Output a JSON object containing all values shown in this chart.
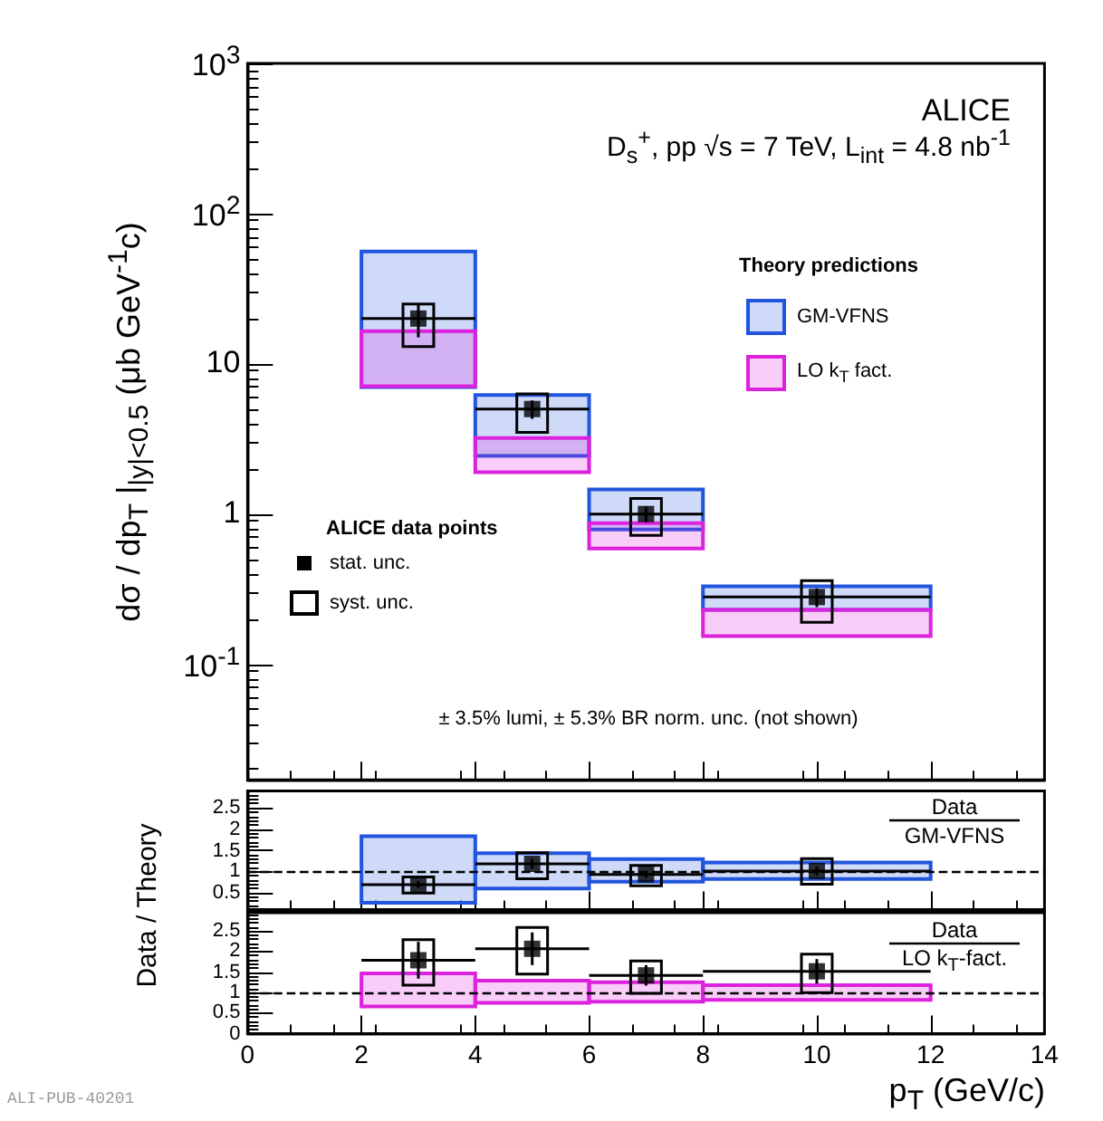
{
  "chart_data": [
    {
      "type": "scatter",
      "ylabel": "dσ / dp$_{T}$ |$_{|y|<0.5}$  (μb GeV$^{-1}$c)",
      "legend_title": "Theory predictions",
      "legend": "center",
      "log": "y",
      "marker": "square",
      "tick_labels": "y",
      "annotations": [
        "ALICE",
        "D$_{s}$$^{+}$, pp √s = 7 TeV, L$_{int}$ = 4.8 nb$^{-1}$",
        "± 3.5% lumi, ± 5.3% BR norm. unc. (not shown)",
        "ALICE data points"
      ],
      "xlim": [
        0,
        14
      ],
      "xticks": [
        0,
        2,
        4,
        6,
        8,
        10,
        12,
        14
      ],
      "ylim": [
        0.017,
        1000
      ],
      "yticks": [
        {
          "value": 0.1,
          "label": "10$^{-1}$"
        },
        1,
        10,
        {
          "value": 100,
          "label": "10$^{2}$"
        },
        {
          "value": 1000,
          "label": "10$^{3}$"
        }
      ],
      "series": [
        {
          "name": "GM-VFNS",
          "type": "histogram",
          "color": "#2255dd",
          "bins": [
            2,
            4,
            6,
            8,
            12
          ],
          "base": [
            7.0,
            2.44,
            0.79,
            0.23
          ],
          "values": [
            49,
            3.76,
            0.67,
            0.1
          ]
        },
        {
          "name": "LO k$_{T}$ fact.",
          "type": "histogram",
          "color": "#dd22dd",
          "bins": [
            2,
            4,
            6,
            8,
            12
          ],
          "base": [
            7.1,
            1.9,
            0.59,
            0.154
          ],
          "values": [
            9.4,
            1.3,
            0.28,
            0.076
          ]
        },
        {
          "name": "stat. unc.",
          "color": "#000000",
          "x": [
            3,
            5,
            7,
            10
          ],
          "values": [
            20,
            5.0,
            1.0,
            0.28
          ],
          "errors": [
            5,
            0.7,
            0.12,
            0.04
          ],
          "xerrors": [
            1,
            1,
            1,
            2
          ]
        },
        {
          "name": "syst. unc.",
          "type": "bar",
          "color": "#000000",
          "x": [
            3,
            5,
            7,
            10
          ],
          "base": [
            13,
            3.5,
            0.72,
            0.19
          ],
          "values": [
            12,
            2.8,
            0.55,
            0.17
          ]
        }
      ]
    },
    {
      "type": "scatter",
      "ylabel": "Data / Theory",
      "marker": "square",
      "tick_labels": "y",
      "annotations": [
        "Data",
        "GM-VFNS"
      ],
      "xlim": [
        0,
        14
      ],
      "xticks": [
        0,
        2,
        4,
        6,
        8,
        10,
        12,
        14
      ],
      "ylim": [
        0.1,
        2.9
      ],
      "yticks": [
        0.5,
        1,
        1.5,
        2,
        2.5
      ],
      "ref_lines": [
        {
          "axis": "y",
          "value": 1,
          "color": "#000000",
          "line_style": "dashed"
        }
      ],
      "series": [
        {
          "type": "histogram",
          "color": "#2255dd",
          "bins": [
            2,
            4,
            6,
            8,
            12
          ],
          "base": [
            0.26,
            0.6,
            0.76,
            0.82
          ],
          "values": [
            1.57,
            0.83,
            0.53,
            0.39
          ]
        },
        {
          "color": "#000000",
          "x": [
            3,
            5,
            7,
            10
          ],
          "values": [
            0.69,
            1.18,
            0.93,
            1.01
          ],
          "errors": [
            0.08,
            0.12,
            0.08,
            0.1
          ],
          "xerrors": [
            1,
            1,
            1,
            2
          ]
        },
        {
          "type": "bar",
          "color": "#000000",
          "x": [
            3,
            5,
            7,
            10
          ],
          "base": [
            0.49,
            0.83,
            0.66,
            0.7
          ],
          "values": [
            0.38,
            0.61,
            0.48,
            0.6
          ]
        }
      ]
    },
    {
      "type": "scatter",
      "xlabel": "p$_{T}$  (GeV/c)",
      "marker": "square",
      "annotations": [
        "Data",
        "LO k$_{T}$-fact.",
        "ALI-PUB-40201"
      ],
      "xlim": [
        0,
        14
      ],
      "xticks": [
        0,
        2,
        4,
        6,
        8,
        10,
        12,
        14
      ],
      "ylim": [
        0,
        2.95
      ],
      "yticks": [
        0,
        0.5,
        1,
        1.5,
        2,
        2.5
      ],
      "ref_lines": [
        {
          "axis": "y",
          "value": 1,
          "color": "#000000",
          "line_style": "dashed"
        }
      ],
      "series": [
        {
          "type": "histogram",
          "color": "#dd22dd",
          "bins": [
            2,
            4,
            6,
            8,
            12
          ],
          "base": [
            0.66,
            0.75,
            0.78,
            0.82
          ],
          "values": [
            0.81,
            0.54,
            0.47,
            0.36
          ]
        },
        {
          "color": "#000000",
          "x": [
            3,
            5,
            7,
            10
          ],
          "values": [
            1.79,
            2.07,
            1.42,
            1.52
          ],
          "errors": [
            0.45,
            0.4,
            0.25,
            0.3
          ],
          "xerrors": [
            1,
            1,
            1,
            2
          ]
        },
        {
          "type": "bar",
          "color": "#000000",
          "x": [
            3,
            5,
            7,
            10
          ],
          "base": [
            1.18,
            1.45,
            0.98,
            1.0
          ],
          "values": [
            1.11,
            1.14,
            0.79,
            0.94
          ]
        }
      ]
    }
  ]
}
